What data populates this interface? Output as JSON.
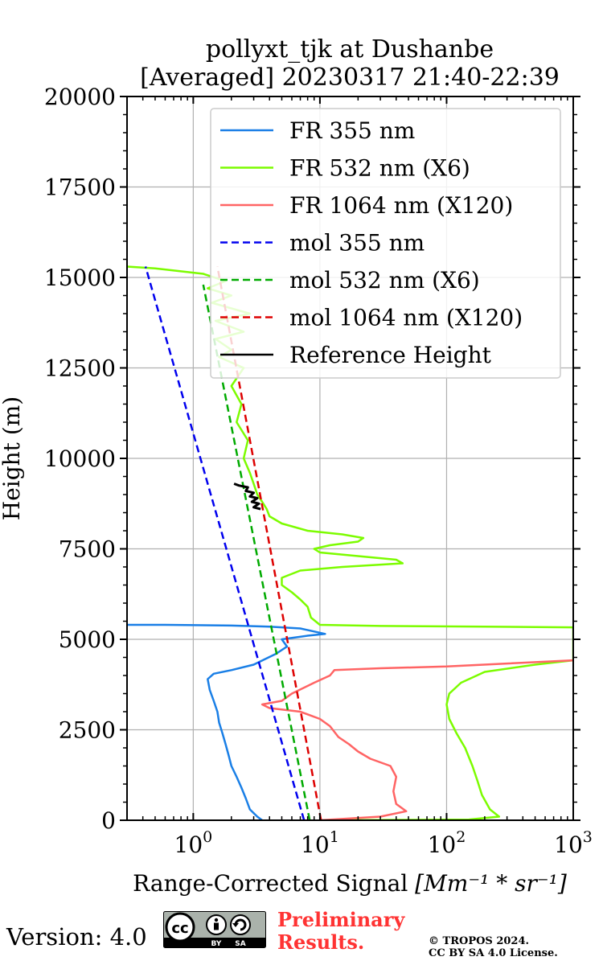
{
  "chart_data": {
    "type": "line",
    "title_lines": [
      "pollyxt_tjk at Dushanbe",
      "[Averaged] 20230317 21:40-22:39"
    ],
    "xlabel": "Range-Corrected Signal",
    "xlabel_unit": "[Mm⁻¹ * sr⁻¹]",
    "ylabel": "Height (m)",
    "x_scale": "log",
    "xlim": [
      0.3,
      1000
    ],
    "ylim": [
      0,
      20000
    ],
    "x_ticks": [
      {
        "value": 1,
        "label": "10",
        "exp": "0"
      },
      {
        "value": 10,
        "label": "10",
        "exp": "1"
      },
      {
        "value": 100,
        "label": "10",
        "exp": "2"
      },
      {
        "value": 1000,
        "label": "10",
        "exp": "3"
      }
    ],
    "y_ticks": [
      {
        "value": 0,
        "label": "0"
      },
      {
        "value": 2500,
        "label": "2500"
      },
      {
        "value": 5000,
        "label": "5000"
      },
      {
        "value": 7500,
        "label": "7500"
      },
      {
        "value": 10000,
        "label": "10000"
      },
      {
        "value": 12500,
        "label": "12500"
      },
      {
        "value": 15000,
        "label": "15000"
      },
      {
        "value": 17500,
        "label": "17500"
      },
      {
        "value": 20000,
        "label": "20000"
      }
    ],
    "grid": true,
    "legend_position": "upper-right",
    "series": [
      {
        "name": "FR 355 nm",
        "color": "#1a7fe6",
        "style": "solid",
        "points": [
          [
            3.5,
            0
          ],
          [
            3.2,
            100
          ],
          [
            2.8,
            300
          ],
          [
            2.6,
            600
          ],
          [
            2.4,
            900
          ],
          [
            2.2,
            1200
          ],
          [
            2.0,
            1500
          ],
          [
            1.9,
            1800
          ],
          [
            1.8,
            2100
          ],
          [
            1.7,
            2400
          ],
          [
            1.6,
            2700
          ],
          [
            1.55,
            3000
          ],
          [
            1.45,
            3300
          ],
          [
            1.35,
            3600
          ],
          [
            1.3,
            3900
          ],
          [
            1.45,
            4050
          ],
          [
            2.0,
            4150
          ],
          [
            3.0,
            4300
          ],
          [
            4.5,
            4600
          ],
          [
            5.5,
            4800
          ],
          [
            5.0,
            5000
          ],
          [
            8.0,
            5100
          ],
          [
            11.0,
            5150
          ],
          [
            7.0,
            5300
          ],
          [
            4.0,
            5350
          ],
          [
            2.0,
            5380
          ],
          [
            0.6,
            5400
          ],
          [
            0.3,
            5400
          ]
        ]
      },
      {
        "name": "FR 532 nm (X6)",
        "color": "#7cfc00",
        "style": "solid",
        "points": [
          [
            10,
            0
          ],
          [
            150,
            20
          ],
          [
            260,
            100
          ],
          [
            220,
            300
          ],
          [
            190,
            700
          ],
          [
            175,
            1100
          ],
          [
            160,
            1500
          ],
          [
            140,
            2000
          ],
          [
            120,
            2400
          ],
          [
            105,
            2800
          ],
          [
            100,
            3200
          ],
          [
            105,
            3500
          ],
          [
            130,
            3800
          ],
          [
            200,
            4100
          ],
          [
            500,
            4300
          ],
          [
            1000,
            4420
          ],
          [
            1000,
            5330
          ],
          [
            200,
            5350
          ],
          [
            30,
            5370
          ],
          [
            10,
            5400
          ],
          [
            8.5,
            5600
          ],
          [
            8.0,
            5900
          ],
          [
            7.0,
            6100
          ],
          [
            6.0,
            6300
          ],
          [
            5.0,
            6500
          ],
          [
            5.0,
            6700
          ],
          [
            7.0,
            6900
          ],
          [
            15.0,
            7000
          ],
          [
            45.0,
            7100
          ],
          [
            40.0,
            7200
          ],
          [
            20.0,
            7300
          ],
          [
            10.0,
            7400
          ],
          [
            9.0,
            7500
          ],
          [
            12.0,
            7600
          ],
          [
            20.0,
            7700
          ],
          [
            22.0,
            7800
          ],
          [
            15.0,
            7900
          ],
          [
            8.0,
            8000
          ],
          [
            5.0,
            8200
          ],
          [
            4.0,
            8400
          ],
          [
            3.8,
            8600
          ],
          [
            3.5,
            8800
          ],
          [
            3.2,
            9000
          ],
          [
            3.0,
            9300
          ],
          [
            2.8,
            9600
          ],
          [
            2.5,
            10000
          ],
          [
            2.7,
            10500
          ],
          [
            2.2,
            11000
          ],
          [
            2.4,
            11500
          ],
          [
            2.0,
            12000
          ],
          [
            2.5,
            12500
          ],
          [
            1.6,
            12800
          ],
          [
            2.0,
            13000
          ],
          [
            1.5,
            13300
          ],
          [
            2.5,
            13500
          ],
          [
            1.5,
            13800
          ],
          [
            2.8,
            14000
          ],
          [
            1.4,
            14300
          ],
          [
            2.0,
            14500
          ],
          [
            1.3,
            14700
          ],
          [
            1.8,
            14900
          ],
          [
            1.2,
            15100
          ],
          [
            0.5,
            15250
          ],
          [
            0.3,
            15300
          ]
        ]
      },
      {
        "name": "FR 1064 nm (X120)",
        "color": "#ff6464",
        "style": "solid",
        "points": [
          [
            10,
            0
          ],
          [
            30,
            100
          ],
          [
            48,
            250
          ],
          [
            40,
            450
          ],
          [
            38,
            800
          ],
          [
            40,
            1200
          ],
          [
            36,
            1500
          ],
          [
            25,
            1700
          ],
          [
            20,
            1900
          ],
          [
            17,
            2100
          ],
          [
            14,
            2300
          ],
          [
            12,
            2600
          ],
          [
            10,
            2800
          ],
          [
            7,
            3000
          ],
          [
            4,
            3100
          ],
          [
            3.5,
            3200
          ],
          [
            5,
            3300
          ],
          [
            6,
            3500
          ],
          [
            9,
            3800
          ],
          [
            12,
            4000
          ],
          [
            13,
            4150
          ],
          [
            30,
            4200
          ],
          [
            100,
            4250
          ],
          [
            300,
            4330
          ],
          [
            1000,
            4420
          ]
        ]
      },
      {
        "name": "mol 355 nm",
        "color": "#0000ee",
        "style": "dashed",
        "points": [
          [
            7.5,
            0
          ],
          [
            0.42,
            15300
          ]
        ]
      },
      {
        "name": "mol 532 nm (X6)",
        "color": "#00aa00",
        "style": "dashed",
        "points": [
          [
            8.3,
            0
          ],
          [
            1.2,
            14800
          ]
        ]
      },
      {
        "name": "mol 1064 nm (X120)",
        "color": "#dd0000",
        "style": "dashed",
        "points": [
          [
            10.2,
            0
          ],
          [
            1.55,
            15300
          ]
        ]
      },
      {
        "name": "Reference Height",
        "color": "#000000",
        "style": "solid",
        "points": [
          [
            3.4,
            8600
          ],
          [
            3.0,
            8650
          ],
          [
            3.3,
            8750
          ],
          [
            2.9,
            8800
          ],
          [
            3.2,
            8900
          ],
          [
            2.8,
            8950
          ],
          [
            3.0,
            9050
          ],
          [
            2.6,
            9100
          ],
          [
            2.7,
            9200
          ],
          [
            2.3,
            9250
          ],
          [
            2.1,
            9300
          ]
        ]
      }
    ]
  },
  "footer": {
    "version": "Version: 4.0",
    "preliminary": [
      "Preliminary",
      "Results."
    ],
    "copyright": [
      "© TROPOS 2024.",
      "CC BY SA 4.0 License."
    ],
    "badge_cc": "cc",
    "badge_by": "BY",
    "badge_sa": "SA"
  }
}
